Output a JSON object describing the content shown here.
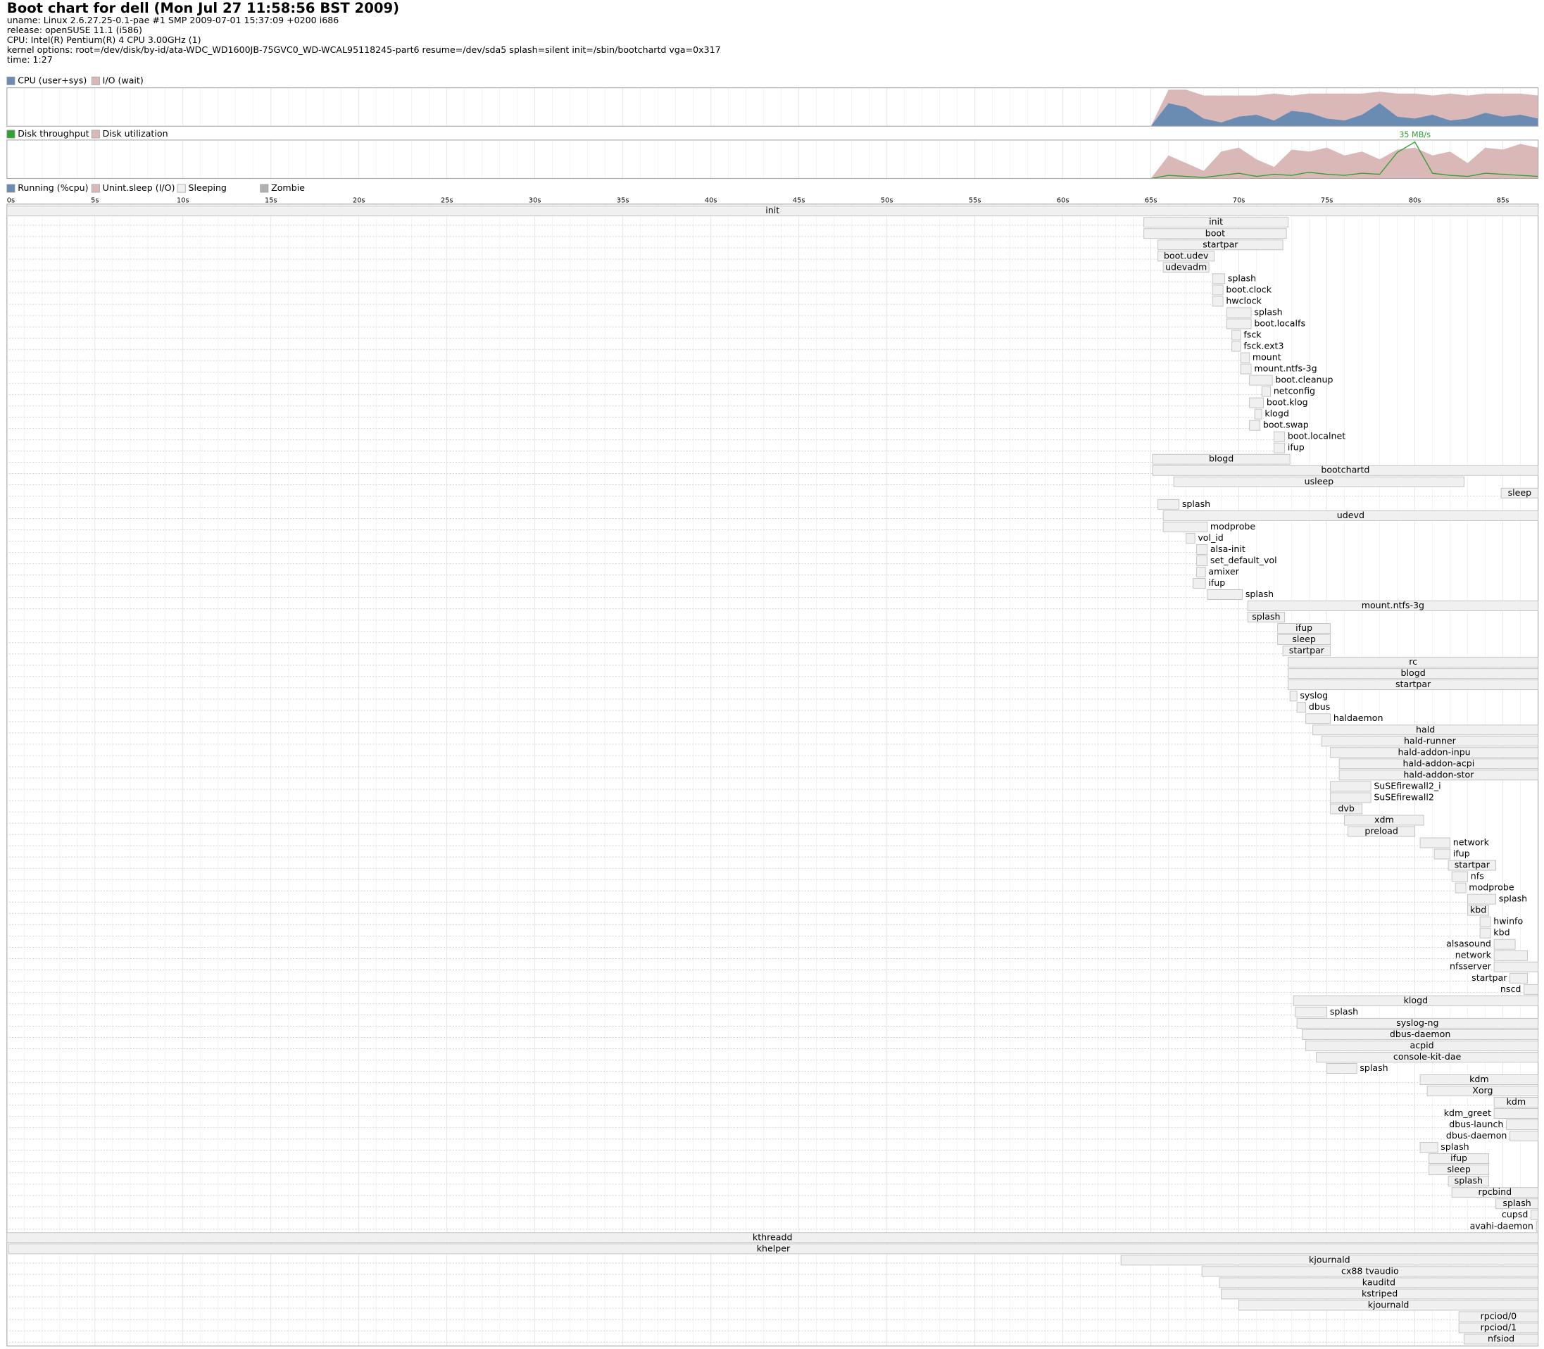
{
  "header": {
    "title": "Boot chart for dell (Mon Jul 27 11:58:56 BST 2009)",
    "lines": [
      "uname: Linux 2.6.27.25-0.1-pae #1 SMP 2009-07-01 15:37:09 +0200 i686",
      "release: openSUSE 11.1 (i586)",
      "CPU: Intel(R) Pentium(R) 4 CPU 3.00GHz (1)",
      "kernel options: root=/dev/disk/by-id/ata-WDC_WD1600JB-75GVC0_WD-WCAL95118245-part6 resume=/dev/sda5 splash=silent init=/sbin/bootchartd vga=0x317",
      "time: 1:27"
    ]
  },
  "cpu_chart": {
    "legend": [
      "CPU (user+sys)",
      "I/O (wait)"
    ],
    "colors": [
      "#6a8cb2",
      "#dbb8b8"
    ],
    "x": [
      65,
      66,
      67,
      68,
      69,
      70,
      71,
      72,
      73,
      74,
      75,
      76,
      77,
      78,
      79,
      80,
      81,
      82,
      83,
      84,
      85,
      86,
      87
    ],
    "cpu": [
      0,
      60,
      50,
      20,
      10,
      25,
      30,
      15,
      40,
      35,
      20,
      15,
      30,
      60,
      25,
      20,
      30,
      15,
      20,
      35,
      25,
      30,
      20
    ],
    "io": [
      0,
      35,
      45,
      60,
      70,
      55,
      50,
      70,
      40,
      50,
      65,
      70,
      55,
      30,
      60,
      65,
      50,
      70,
      60,
      50,
      60,
      55,
      60
    ]
  },
  "disk_chart": {
    "legend": [
      "Disk throughput",
      "Disk utilization"
    ],
    "colors": [
      "#33a033",
      "#dbb8b8"
    ],
    "max_label": "35 MB/s",
    "x": [
      65,
      66,
      67,
      68,
      69,
      70,
      71,
      72,
      73,
      74,
      75,
      76,
      77,
      78,
      79,
      80,
      81,
      82,
      83,
      84,
      85,
      86,
      87
    ],
    "throughput": [
      0,
      3,
      2,
      1,
      3,
      5,
      2,
      4,
      3,
      6,
      4,
      3,
      5,
      4,
      25,
      35,
      5,
      3,
      2,
      5,
      4,
      3,
      2
    ],
    "utilization": [
      0,
      60,
      40,
      20,
      70,
      80,
      50,
      30,
      75,
      70,
      80,
      60,
      70,
      50,
      75,
      80,
      60,
      70,
      40,
      80,
      75,
      90,
      80
    ]
  },
  "process_chart": {
    "legend": [
      "Running (%cpu)",
      "Unint.sleep (I/O)",
      "Sleeping",
      "Zombie"
    ],
    "colors": [
      "#6a8cb2",
      "#dbb8b8",
      "#f0f0f0",
      "#b0b0b0"
    ],
    "xlim": [
      0,
      87
    ],
    "xticks": [
      {
        "value": 0,
        "label": "0s"
      },
      {
        "value": 5,
        "label": "5s"
      },
      {
        "value": 10,
        "label": "10s"
      },
      {
        "value": 15,
        "label": "15s"
      },
      {
        "value": 20,
        "label": "20s"
      },
      {
        "value": 25,
        "label": "25s"
      },
      {
        "value": 30,
        "label": "30s"
      },
      {
        "value": 35,
        "label": "35s"
      },
      {
        "value": 40,
        "label": "40s"
      },
      {
        "value": 45,
        "label": "45s"
      },
      {
        "value": 50,
        "label": "50s"
      },
      {
        "value": 55,
        "label": "55s"
      },
      {
        "value": 60,
        "label": "60s"
      },
      {
        "value": 65,
        "label": "65s"
      },
      {
        "value": 70,
        "label": "70s"
      },
      {
        "value": 75,
        "label": "75s"
      },
      {
        "value": 80,
        "label": "80s"
      },
      {
        "value": 85,
        "label": "85s"
      }
    ],
    "processes": [
      {
        "name": "init",
        "start": 0,
        "end": 87
      },
      {
        "name": "init",
        "start": 64.6,
        "end": 72.8
      },
      {
        "name": "boot",
        "start": 64.6,
        "end": 72.7
      },
      {
        "name": "startpar",
        "start": 65.4,
        "end": 72.5
      },
      {
        "name": "boot.udev",
        "start": 65.4,
        "end": 68.6
      },
      {
        "name": "udevadm",
        "start": 65.7,
        "end": 68.3
      },
      {
        "name": "splash",
        "start": 68.5,
        "end": 69.2
      },
      {
        "name": "boot.clock",
        "start": 68.5,
        "end": 69.1
      },
      {
        "name": "hwclock",
        "start": 68.5,
        "end": 69.1
      },
      {
        "name": "splash",
        "start": 69.3,
        "end": 70.7
      },
      {
        "name": "boot.localfs",
        "start": 69.3,
        "end": 70.7
      },
      {
        "name": "fsck",
        "start": 69.6,
        "end": 70.1
      },
      {
        "name": "fsck.ext3",
        "start": 69.6,
        "end": 70.1
      },
      {
        "name": "mount",
        "start": 70.1,
        "end": 70.6
      },
      {
        "name": "mount.ntfs-3g",
        "start": 70.1,
        "end": 70.7
      },
      {
        "name": "boot.cleanup",
        "start": 70.6,
        "end": 71.9
      },
      {
        "name": "netconfig",
        "start": 71.3,
        "end": 71.8
      },
      {
        "name": "boot.klog",
        "start": 70.6,
        "end": 71.4
      },
      {
        "name": "klogd",
        "start": 70.9,
        "end": 71.3
      },
      {
        "name": "boot.swap",
        "start": 70.6,
        "end": 71.2
      },
      {
        "name": "boot.localnet",
        "start": 72.0,
        "end": 72.6
      },
      {
        "name": "ifup",
        "start": 72.0,
        "end": 72.6
      },
      {
        "name": "blogd",
        "start": 65.1,
        "end": 72.9
      },
      {
        "name": "bootchartd",
        "start": 65.1,
        "end": 87
      },
      {
        "name": "usleep",
        "start": 66.3,
        "end": 82.8
      },
      {
        "name": "sleep",
        "start": 84.9,
        "end": 87
      },
      {
        "name": "splash",
        "start": 65.4,
        "end": 66.6
      },
      {
        "name": "udevd",
        "start": 65.7,
        "end": 87
      },
      {
        "name": "modprobe",
        "start": 65.7,
        "end": 68.2
      },
      {
        "name": "vol_id",
        "start": 67.0,
        "end": 67.5
      },
      {
        "name": "alsa-init",
        "start": 67.6,
        "end": 68.2
      },
      {
        "name": "set_default_vol",
        "start": 67.6,
        "end": 68.2
      },
      {
        "name": "amixer",
        "start": 67.6,
        "end": 68.1
      },
      {
        "name": "ifup",
        "start": 67.4,
        "end": 68.1
      },
      {
        "name": "splash",
        "start": 68.2,
        "end": 70.2
      },
      {
        "name": "mount.ntfs-3g",
        "start": 70.5,
        "end": 87
      },
      {
        "name": "splash",
        "start": 70.5,
        "end": 72.6
      },
      {
        "name": "ifup",
        "start": 72.2,
        "end": 75.2
      },
      {
        "name": "sleep",
        "start": 72.2,
        "end": 75.2
      },
      {
        "name": "startpar",
        "start": 72.5,
        "end": 75.2
      },
      {
        "name": "rc",
        "start": 72.8,
        "end": 87
      },
      {
        "name": "blogd",
        "start": 72.8,
        "end": 87
      },
      {
        "name": "startpar",
        "start": 72.8,
        "end": 87
      },
      {
        "name": "syslog",
        "start": 72.9,
        "end": 73.3
      },
      {
        "name": "dbus",
        "start": 73.3,
        "end": 73.8
      },
      {
        "name": "haldaemon",
        "start": 73.8,
        "end": 75.2
      },
      {
        "name": "hald",
        "start": 74.2,
        "end": 87
      },
      {
        "name": "hald-runner",
        "start": 74.7,
        "end": 87
      },
      {
        "name": "hald-addon-inpu",
        "start": 75.2,
        "end": 87
      },
      {
        "name": "hald-addon-acpi",
        "start": 75.7,
        "end": 87
      },
      {
        "name": "hald-addon-stor",
        "start": 75.7,
        "end": 87
      },
      {
        "name": "SuSEfirewall2_i",
        "start": 75.2,
        "end": 77.5
      },
      {
        "name": "SuSEfirewall2",
        "start": 75.2,
        "end": 77.5
      },
      {
        "name": "dvb",
        "start": 75.2,
        "end": 77.0
      },
      {
        "name": "xdm",
        "start": 76.0,
        "end": 80.5
      },
      {
        "name": "preload",
        "start": 76.2,
        "end": 80.0
      },
      {
        "name": "network",
        "start": 80.3,
        "end": 82.0
      },
      {
        "name": "ifup",
        "start": 81.1,
        "end": 82.0
      },
      {
        "name": "startpar",
        "start": 81.9,
        "end": 84.6
      },
      {
        "name": "nfs",
        "start": 82.1,
        "end": 83.0
      },
      {
        "name": "modprobe",
        "start": 82.3,
        "end": 82.9
      },
      {
        "name": "splash",
        "start": 83.0,
        "end": 84.6
      },
      {
        "name": "kbd",
        "start": 83.0,
        "end": 84.2
      },
      {
        "name": "hwinfo",
        "start": 83.7,
        "end": 84.3
      },
      {
        "name": "kbd",
        "start": 83.7,
        "end": 84.3
      },
      {
        "name": "alsasound",
        "start": 84.5,
        "end": 85.7
      },
      {
        "name": "network",
        "start": 84.5,
        "end": 86.4
      },
      {
        "name": "nfsserver",
        "start": 84.5,
        "end": 87
      },
      {
        "name": "startpar",
        "start": 85.4,
        "end": 86.4
      },
      {
        "name": "nscd",
        "start": 86.2,
        "end": 87
      },
      {
        "name": "klogd",
        "start": 73.1,
        "end": 87
      },
      {
        "name": "splash",
        "start": 73.2,
        "end": 75.0
      },
      {
        "name": "syslog-ng",
        "start": 73.3,
        "end": 87
      },
      {
        "name": "dbus-daemon",
        "start": 73.6,
        "end": 87
      },
      {
        "name": "acpid",
        "start": 73.8,
        "end": 87
      },
      {
        "name": "console-kit-dae",
        "start": 74.4,
        "end": 87
      },
      {
        "name": "splash",
        "start": 75.0,
        "end": 76.7
      },
      {
        "name": "kdm",
        "start": 80.3,
        "end": 87
      },
      {
        "name": "Xorg",
        "start": 80.7,
        "end": 87
      },
      {
        "name": "kdm",
        "start": 84.5,
        "end": 87
      },
      {
        "name": "kdm_greet",
        "start": 84.5,
        "end": 87
      },
      {
        "name": "dbus-launch",
        "start": 85.2,
        "end": 87
      },
      {
        "name": "dbus-daemon",
        "start": 85.4,
        "end": 87
      },
      {
        "name": "splash",
        "start": 80.3,
        "end": 81.3
      },
      {
        "name": "ifup",
        "start": 80.8,
        "end": 84.2
      },
      {
        "name": "sleep",
        "start": 80.8,
        "end": 84.2
      },
      {
        "name": "splash",
        "start": 81.9,
        "end": 84.2
      },
      {
        "name": "rpcbind",
        "start": 82.1,
        "end": 87
      },
      {
        "name": "splash",
        "start": 84.6,
        "end": 87
      },
      {
        "name": "cupsd",
        "start": 86.6,
        "end": 87
      },
      {
        "name": "avahi-daemon",
        "start": 86.9,
        "end": 87
      },
      {
        "name": "kthreadd",
        "start": 0,
        "end": 87
      },
      {
        "name": "khelper",
        "start": 0.1,
        "end": 87
      },
      {
        "name": "kjournald",
        "start": 63.3,
        "end": 87
      },
      {
        "name": "cx88 tvaudio",
        "start": 67.9,
        "end": 87
      },
      {
        "name": "kauditd",
        "start": 68.9,
        "end": 87
      },
      {
        "name": "kstriped",
        "start": 69.0,
        "end": 87
      },
      {
        "name": "kjournald",
        "start": 70.0,
        "end": 87
      },
      {
        "name": "rpciod/0",
        "start": 82.5,
        "end": 87
      },
      {
        "name": "rpciod/1",
        "start": 82.5,
        "end": 87
      },
      {
        "name": "nfsiod",
        "start": 82.8,
        "end": 87
      }
    ]
  }
}
